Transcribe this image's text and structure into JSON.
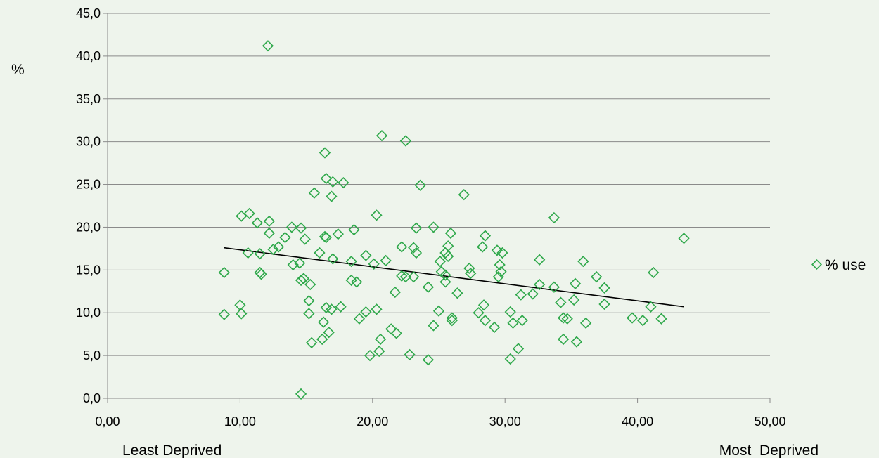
{
  "chart_data": {
    "type": "scatter",
    "title": "",
    "ylabel": "%",
    "xlabel_left": "Least Deprived",
    "xlabel_right": "Most  Deprived",
    "xlim": [
      0,
      50
    ],
    "ylim": [
      0,
      45
    ],
    "x_ticks": [
      "0,00",
      "10,00",
      "20,00",
      "30,00",
      "40,00",
      "50,00"
    ],
    "y_ticks": [
      "0,0",
      "5,0",
      "10,0",
      "15,0",
      "20,0",
      "25,0",
      "30,0",
      "35,0",
      "40,0",
      "45,0"
    ],
    "grid": "horizontal",
    "legend_position": "right",
    "marker_color": "#2ea84a",
    "trend_color": "#000000",
    "series": [
      {
        "name": "% use",
        "points": [
          [
            12.1,
            41.2
          ],
          [
            20.7,
            30.7
          ],
          [
            22.5,
            30.1
          ],
          [
            16.4,
            28.7
          ],
          [
            16.5,
            25.7
          ],
          [
            17.0,
            25.3
          ],
          [
            17.8,
            25.2
          ],
          [
            23.6,
            24.9
          ],
          [
            16.9,
            23.6
          ],
          [
            15.6,
            24.0
          ],
          [
            26.9,
            23.8
          ],
          [
            10.1,
            21.3
          ],
          [
            10.7,
            21.6
          ],
          [
            20.3,
            21.4
          ],
          [
            33.7,
            21.1
          ],
          [
            11.3,
            20.5
          ],
          [
            12.2,
            20.7
          ],
          [
            13.9,
            20.0
          ],
          [
            14.6,
            19.9
          ],
          [
            23.3,
            19.9
          ],
          [
            24.6,
            20.0
          ],
          [
            18.6,
            19.7
          ],
          [
            17.4,
            19.2
          ],
          [
            25.9,
            19.3
          ],
          [
            12.2,
            19.3
          ],
          [
            16.4,
            18.9
          ],
          [
            16.5,
            18.8
          ],
          [
            13.4,
            18.8
          ],
          [
            14.9,
            18.6
          ],
          [
            28.5,
            19.0
          ],
          [
            43.5,
            18.7
          ],
          [
            12.9,
            17.7
          ],
          [
            12.5,
            17.4
          ],
          [
            22.2,
            17.7
          ],
          [
            28.3,
            17.7
          ],
          [
            23.1,
            17.6
          ],
          [
            25.7,
            17.8
          ],
          [
            10.6,
            17.0
          ],
          [
            11.5,
            16.9
          ],
          [
            16.0,
            17.0
          ],
          [
            19.5,
            16.7
          ],
          [
            23.3,
            17.0
          ],
          [
            25.5,
            17.0
          ],
          [
            25.7,
            16.6
          ],
          [
            29.4,
            17.3
          ],
          [
            29.8,
            17.0
          ],
          [
            17.0,
            16.3
          ],
          [
            21.0,
            16.1
          ],
          [
            25.1,
            16.0
          ],
          [
            32.6,
            16.2
          ],
          [
            35.9,
            16.0
          ],
          [
            18.4,
            16.0
          ],
          [
            20.1,
            15.7
          ],
          [
            14.5,
            15.8
          ],
          [
            14.0,
            15.6
          ],
          [
            29.6,
            15.6
          ],
          [
            27.3,
            15.2
          ],
          [
            25.2,
            14.8
          ],
          [
            29.7,
            14.8
          ],
          [
            11.6,
            14.5
          ],
          [
            11.5,
            14.7
          ],
          [
            8.8,
            14.7
          ],
          [
            22.2,
            14.3
          ],
          [
            22.5,
            14.2
          ],
          [
            23.1,
            14.2
          ],
          [
            25.5,
            14.4
          ],
          [
            27.4,
            14.6
          ],
          [
            29.5,
            14.2
          ],
          [
            36.9,
            14.2
          ],
          [
            41.2,
            14.7
          ],
          [
            14.8,
            14.0
          ],
          [
            14.6,
            13.8
          ],
          [
            18.4,
            13.8
          ],
          [
            18.8,
            13.6
          ],
          [
            15.3,
            13.3
          ],
          [
            25.5,
            13.6
          ],
          [
            32.6,
            13.3
          ],
          [
            33.7,
            13.0
          ],
          [
            35.3,
            13.4
          ],
          [
            37.5,
            12.9
          ],
          [
            24.2,
            13.0
          ],
          [
            21.7,
            12.4
          ],
          [
            26.4,
            12.3
          ],
          [
            31.2,
            12.1
          ],
          [
            32.1,
            12.2
          ],
          [
            35.2,
            11.5
          ],
          [
            37.5,
            11.0
          ],
          [
            34.2,
            11.2
          ],
          [
            15.2,
            11.4
          ],
          [
            10.0,
            10.9
          ],
          [
            16.5,
            10.6
          ],
          [
            16.9,
            10.4
          ],
          [
            17.6,
            10.7
          ],
          [
            20.3,
            10.4
          ],
          [
            25.0,
            10.2
          ],
          [
            28.0,
            10.0
          ],
          [
            28.4,
            10.9
          ],
          [
            30.4,
            10.1
          ],
          [
            41.0,
            10.7
          ],
          [
            8.8,
            9.8
          ],
          [
            10.1,
            9.9
          ],
          [
            15.2,
            9.9
          ],
          [
            19.5,
            10.1
          ],
          [
            19.0,
            9.3
          ],
          [
            26.0,
            9.4
          ],
          [
            26.0,
            9.1
          ],
          [
            28.5,
            9.1
          ],
          [
            30.6,
            8.8
          ],
          [
            31.3,
            9.1
          ],
          [
            34.4,
            9.4
          ],
          [
            34.7,
            9.3
          ],
          [
            39.6,
            9.4
          ],
          [
            40.4,
            9.1
          ],
          [
            41.8,
            9.3
          ],
          [
            16.3,
            8.9
          ],
          [
            16.7,
            7.7
          ],
          [
            21.4,
            8.1
          ],
          [
            24.6,
            8.5
          ],
          [
            29.2,
            8.3
          ],
          [
            36.1,
            8.8
          ],
          [
            21.8,
            7.6
          ],
          [
            16.2,
            6.9
          ],
          [
            15.4,
            6.5
          ],
          [
            20.6,
            6.9
          ],
          [
            34.4,
            6.9
          ],
          [
            35.4,
            6.6
          ],
          [
            31.0,
            5.8
          ],
          [
            20.5,
            5.5
          ],
          [
            19.8,
            5.0
          ],
          [
            22.8,
            5.1
          ],
          [
            24.2,
            4.5
          ],
          [
            30.4,
            4.6
          ],
          [
            14.6,
            0.5
          ]
        ]
      }
    ],
    "trendline": {
      "x": [
        8.8,
        43.5
      ],
      "y": [
        17.6,
        10.7
      ]
    }
  }
}
